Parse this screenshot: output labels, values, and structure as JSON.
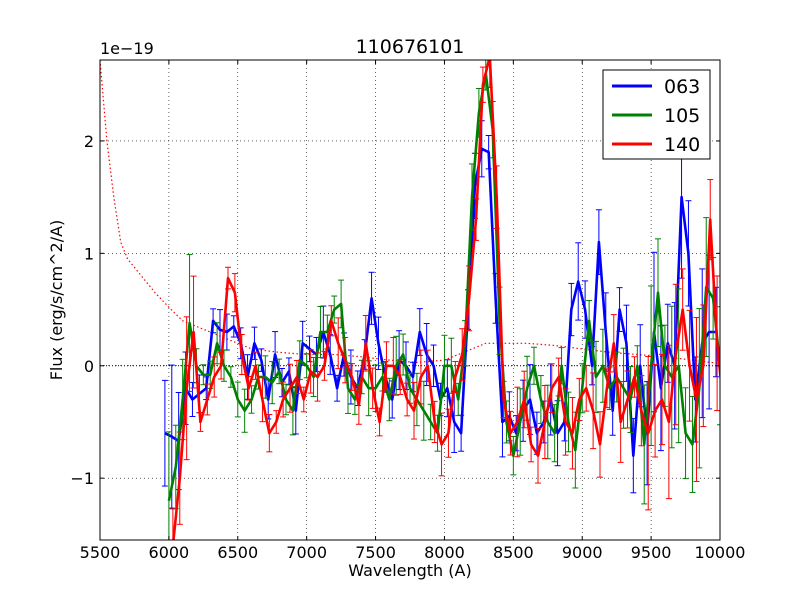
{
  "chart_data": {
    "type": "line",
    "title": "110676101",
    "xlabel": "Wavelength (A)",
    "ylabel": "Flux (erg/s/cm^2/A)",
    "y_multiplier": "1e−19",
    "xlim": [
      5500,
      10000
    ],
    "ylim": [
      -1.55,
      2.72
    ],
    "xticks": [
      5500,
      6000,
      6500,
      7000,
      7500,
      8000,
      8500,
      9000,
      9500,
      10000
    ],
    "xtick_labels": [
      "5500",
      "6000",
      "6500",
      "7000",
      "7500",
      "8000",
      "8500",
      "9000",
      "9500",
      "10000"
    ],
    "yticks": [
      -1,
      0,
      1,
      2
    ],
    "ytick_labels": [
      "−1",
      "0",
      "1",
      "2"
    ],
    "grid": true,
    "legend_position": "top-right",
    "x": [
      6000,
      6050,
      6100,
      6150,
      6200,
      6250,
      6300,
      6350,
      6400,
      6450,
      6500,
      6550,
      6600,
      6650,
      6700,
      6750,
      6800,
      6850,
      6900,
      6950,
      7000,
      7050,
      7100,
      7150,
      7200,
      7250,
      7300,
      7350,
      7400,
      7450,
      7500,
      7550,
      7600,
      7650,
      7700,
      7750,
      7800,
      7850,
      7900,
      7950,
      8000,
      8050,
      8100,
      8150,
      8200,
      8250,
      8300,
      8350,
      8400,
      8450,
      8500,
      8550,
      8600,
      8650,
      8700,
      8750,
      8800,
      8850,
      8900,
      8950,
      9000,
      9050,
      9100,
      9150,
      9200,
      9250,
      9300,
      9350,
      9400,
      9450,
      9500,
      9550,
      9600,
      9650,
      9700,
      9750,
      9800,
      9850,
      9900,
      9950,
      10000
    ],
    "series": [
      {
        "name": "063",
        "color": "#0000ff",
        "error_bars": true,
        "values": [
          -0.6,
          -0.63,
          -0.67,
          -0.2,
          -0.3,
          -0.25,
          -0.2,
          0.4,
          0.32,
          0.3,
          0.35,
          0.2,
          -0.1,
          0.2,
          0.05,
          -0.3,
          0.1,
          -0.15,
          -0.05,
          -0.4,
          0.2,
          0.15,
          0.1,
          0.3,
          0.1,
          -0.2,
          0.1,
          -0.1,
          -0.2,
          0.1,
          0.6,
          0.2,
          -0.1,
          -0.3,
          0.05,
          0.0,
          -0.1,
          0.3,
          0.1,
          0.0,
          -0.3,
          -0.2,
          -0.5,
          -0.6,
          0.5,
          1.6,
          1.93,
          1.9,
          0.6,
          -0.5,
          -0.45,
          -0.6,
          -0.4,
          -0.3,
          -0.6,
          -0.5,
          -0.3,
          -0.6,
          -0.5,
          0.5,
          0.75,
          0.5,
          0.0,
          1.1,
          0.3,
          -0.4,
          0.5,
          0.2,
          -0.8,
          0.0,
          -0.6,
          0.3,
          -0.2,
          0.2,
          0.0,
          1.5,
          1.0,
          -0.3,
          0.2,
          0.3,
          0.3
        ]
      },
      {
        "name": "105",
        "color": "#008000",
        "error_bars": true,
        "values": [
          -1.2,
          -0.9,
          -0.3,
          0.38,
          0.0,
          -0.08,
          -0.08,
          0.2,
          0.0,
          -0.1,
          -0.3,
          -0.4,
          -0.3,
          -0.1,
          -0.1,
          -0.15,
          -0.05,
          -0.3,
          -0.4,
          0.05,
          0.0,
          -0.1,
          0.3,
          0.3,
          0.5,
          0.55,
          -0.2,
          -0.3,
          -0.1,
          -0.2,
          -0.2,
          -0.1,
          -0.3,
          0.0,
          0.1,
          -0.2,
          -0.3,
          -0.4,
          -0.5,
          -0.6,
          0.0,
          0.0,
          -0.3,
          0.2,
          1.5,
          2.25,
          2.6,
          2.1,
          0.4,
          -0.5,
          -0.8,
          -0.5,
          -0.2,
          0.0,
          -0.3,
          -0.5,
          -0.6,
          0.0,
          -0.5,
          -0.75,
          -0.2,
          0.4,
          -0.1,
          0.0,
          -0.2,
          -0.1,
          -0.2,
          -0.3,
          0.0,
          -0.7,
          0.0,
          0.65,
          0.0,
          -0.1,
          0.0,
          -0.6,
          -0.7,
          -0.2,
          0.7,
          0.6,
          0.0
        ]
      },
      {
        "name": "140",
        "color": "#ff0000",
        "error_bars": true,
        "values": [
          -1.6,
          -1.0,
          -0.2,
          0.3,
          -0.5,
          -0.3,
          -0.1,
          0.0,
          0.78,
          0.65,
          0.1,
          -0.2,
          0.0,
          -0.3,
          -0.6,
          -0.5,
          -0.3,
          -0.2,
          -0.1,
          -0.3,
          -0.05,
          -0.1,
          0.0,
          0.4,
          0.2,
          0.05,
          -0.1,
          -0.35,
          0.2,
          -0.2,
          -0.5,
          0.0,
          0.0,
          -0.1,
          -0.3,
          -0.4,
          -0.1,
          0.0,
          -0.5,
          -0.7,
          -0.6,
          -0.1,
          0.1,
          0.6,
          1.3,
          2.5,
          2.75,
          1.5,
          -0.3,
          -0.6,
          -0.5,
          -0.3,
          -0.7,
          -0.8,
          -0.5,
          -0.2,
          -0.1,
          -0.5,
          -0.6,
          -0.3,
          -0.2,
          -0.4,
          -0.7,
          -0.2,
          0.2,
          -0.5,
          -0.3,
          -0.1,
          -0.4,
          -0.6,
          -0.4,
          -0.3,
          -0.5,
          0.1,
          0.5,
          0.0,
          -0.3,
          0.0,
          1.3,
          0.2,
          -0.4
        ]
      }
    ],
    "reference_line": {
      "style": "dotted",
      "color": "#ff0000",
      "x": [
        5500,
        5550,
        5600,
        5650,
        5700,
        5800,
        5900,
        6000,
        6100,
        6200,
        6300,
        6400,
        6500,
        6600,
        6800,
        7000,
        7200,
        7400,
        7600,
        7800,
        8000,
        8100,
        8200,
        8300,
        8400,
        8500,
        8600,
        8800,
        9000,
        9200,
        9400,
        9600,
        9800,
        10000
      ],
      "values": [
        2.72,
        2.0,
        1.5,
        1.1,
        0.95,
        0.8,
        0.65,
        0.52,
        0.4,
        0.35,
        0.3,
        0.25,
        0.2,
        0.15,
        0.12,
        0.1,
        0.1,
        0.08,
        0.05,
        0.03,
        0.05,
        0.1,
        0.15,
        0.2,
        0.2,
        0.2,
        0.2,
        0.18,
        0.15,
        0.12,
        0.1,
        0.08,
        0.05,
        0.02
      ]
    },
    "zero_line": {
      "style": "dotted",
      "color": "#000000",
      "y": 0
    }
  }
}
